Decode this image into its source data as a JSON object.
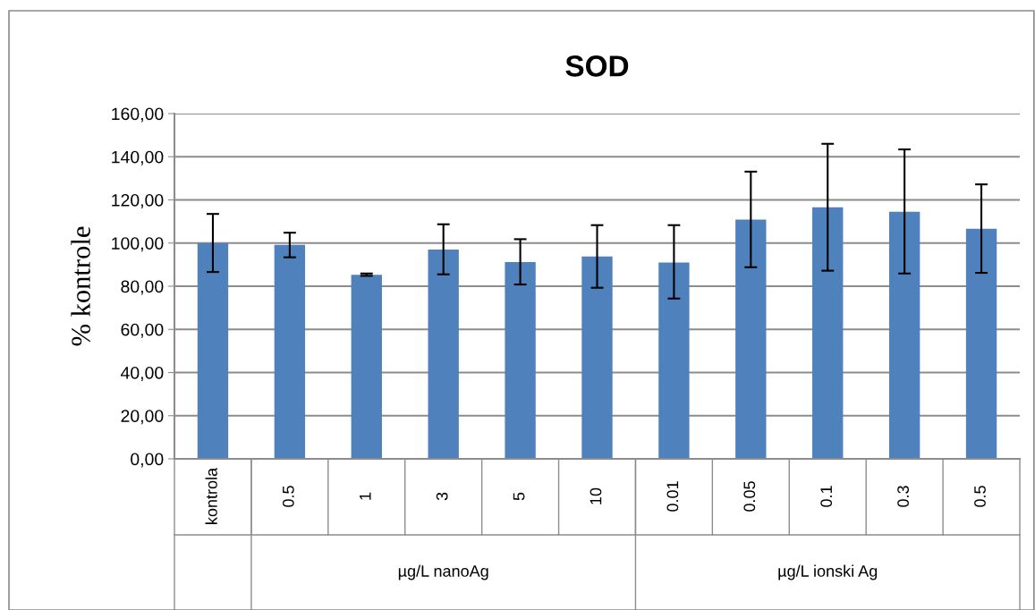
{
  "chart_data": {
    "type": "bar",
    "title": "SOD",
    "ylabel": "% kontrole",
    "categories": [
      "kontrola",
      "0.5",
      "1",
      "3",
      "5",
      "10",
      "0.01",
      "0.05",
      "0.1",
      "0.3",
      "0.5"
    ],
    "values": [
      100.0,
      99.2,
      85.3,
      97.0,
      91.2,
      93.8,
      91.0,
      110.9,
      116.6,
      114.5,
      106.6
    ],
    "errors": [
      [
        86.6,
        113.5
      ],
      [
        93.4,
        104.8
      ],
      [
        84.8,
        85.9
      ],
      [
        85.5,
        108.7
      ],
      [
        80.8,
        101.8
      ],
      [
        79.3,
        108.3
      ],
      [
        74.3,
        108.3
      ],
      [
        88.8,
        133.1
      ],
      [
        87.2,
        146.0
      ],
      [
        85.9,
        143.4
      ],
      [
        86.2,
        127.2
      ]
    ],
    "color": "#4f81bd",
    "ylim": [
      0,
      160
    ],
    "yticks": [
      {
        "value": 0,
        "label": "0,00"
      },
      {
        "value": 20,
        "label": "20,00"
      },
      {
        "value": 40,
        "label": "40,00"
      },
      {
        "value": 60,
        "label": "60,00"
      },
      {
        "value": 80,
        "label": "80,00"
      },
      {
        "value": 100,
        "label": "100,00"
      },
      {
        "value": 120,
        "label": "120,00"
      },
      {
        "value": 140,
        "label": "140,00"
      },
      {
        "value": 160,
        "label": "160,00"
      }
    ],
    "grid": "y",
    "annotations": [
      "µg/L nanoAg",
      "µg/L ionski Ag"
    ]
  }
}
